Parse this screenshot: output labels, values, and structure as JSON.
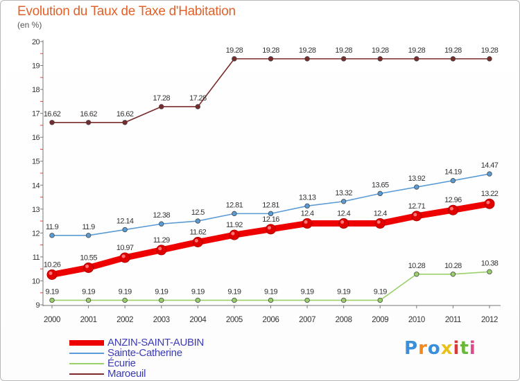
{
  "header": {
    "title": "Evolution du Taux de Taxe d'Habitation",
    "subtitle": "(en %)"
  },
  "logo": {
    "text": "Proxiti",
    "letters": [
      "P",
      "r",
      "o",
      "x",
      "i",
      "t",
      "i"
    ]
  },
  "chart_data": {
    "type": "line",
    "title": "Evolution du Taux de Taxe d'Habitation",
    "ylabel": "(en %)",
    "xlabel": "",
    "ylim": [
      9,
      20
    ],
    "yticks": [
      "9",
      "10",
      "11",
      "12",
      "13",
      "14",
      "15",
      "16",
      "17",
      "18",
      "19",
      "20"
    ],
    "categories": [
      "2000",
      "2001",
      "2002",
      "2003",
      "2004",
      "2005",
      "2006",
      "2007",
      "2008",
      "2009",
      "2010",
      "2011",
      "2012"
    ],
    "grid": false,
    "legend_position": "bottom-left",
    "series": [
      {
        "name": "Maroeuil",
        "color": "#7a2a2a",
        "values": [
          16.62,
          16.62,
          16.62,
          17.28,
          17.28,
          19.28,
          19.28,
          19.28,
          19.28,
          19.28,
          19.28,
          19.28,
          19.28
        ],
        "labels": [
          "16.62",
          "16.62",
          "16.62",
          "17.28",
          "17.28",
          "19.28",
          "19.28",
          "19.28",
          "19.28",
          "19.28",
          "19.28",
          "19.28",
          "19.28"
        ]
      },
      {
        "name": "Sainte-Catherine",
        "color": "#5b9bd5",
        "values": [
          11.9,
          11.9,
          12.14,
          12.38,
          12.5,
          12.81,
          12.81,
          13.13,
          13.32,
          13.65,
          13.92,
          14.19,
          14.47
        ],
        "labels": [
          "11.9",
          "11.9",
          "12.14",
          "12.38",
          "12.5",
          "12.81",
          "12.81",
          "13.13",
          "13.32",
          "13.65",
          "13.92",
          "14.19",
          "14.47"
        ]
      },
      {
        "name": "ANZIN-SAINT-AUBIN",
        "color": "#ee0000",
        "values": [
          10.26,
          10.55,
          10.97,
          11.29,
          11.62,
          11.92,
          12.16,
          12.4,
          12.4,
          12.4,
          12.71,
          12.96,
          13.22
        ],
        "labels": [
          "10.26",
          "10.55",
          "10.97",
          "11.29",
          "11.62",
          "11.92",
          "12.16",
          "12.4",
          "12.4",
          "12.4",
          "12.71",
          "12.96",
          "13.22"
        ]
      },
      {
        "name": "Écurie",
        "color": "#9ad06a",
        "values": [
          9.19,
          9.19,
          9.19,
          9.19,
          9.19,
          9.19,
          9.19,
          9.19,
          9.19,
          9.19,
          10.28,
          10.28,
          10.38
        ],
        "labels": [
          "9.19",
          "9.19",
          "9.19",
          "9.19",
          "9.19",
          "9.19",
          "9.19",
          "9.19",
          "9.19",
          "9.19",
          "10.28",
          "10.28",
          "10.38"
        ]
      }
    ],
    "legend": [
      {
        "name": "ANZIN-SAINT-AUBIN",
        "color": "#ee0000",
        "thick": true
      },
      {
        "name": "Sainte-Catherine",
        "color": "#5b9bd5",
        "thick": false
      },
      {
        "name": "Écurie",
        "color": "#9ad06a",
        "thick": false
      },
      {
        "name": "Maroeuil",
        "color": "#7a2a2a",
        "thick": false
      }
    ]
  }
}
